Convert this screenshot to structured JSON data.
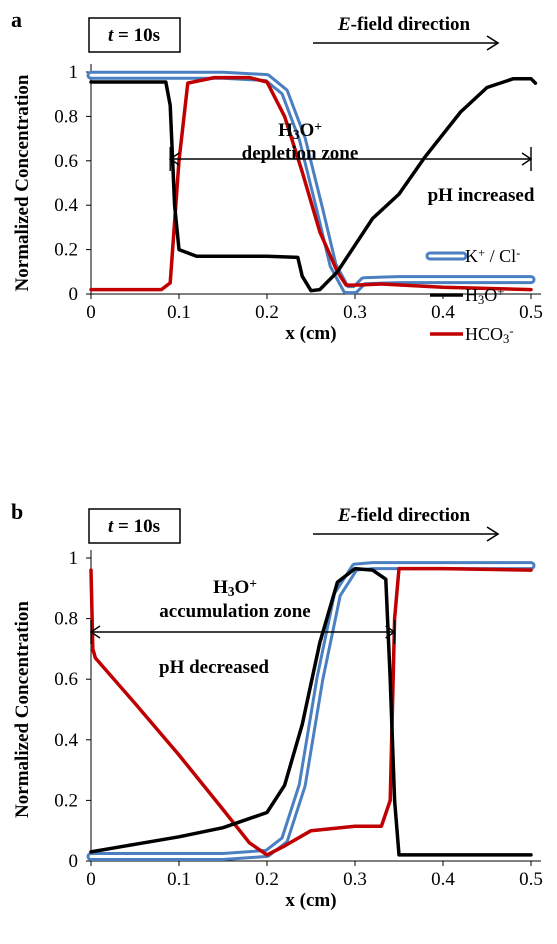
{
  "chart_data": [
    {
      "panel": "a",
      "type": "line",
      "time_label": {
        "italic": "t",
        "rest": " = 10s"
      },
      "efield_label": {
        "italic": "E",
        "rest": "-field direction"
      },
      "xlabel": "x (cm)",
      "ylabel": "Normalized Concentration",
      "xlim": [
        0,
        0.5
      ],
      "ylim": [
        0,
        1
      ],
      "xticks": [
        "0",
        "0.1",
        "0.2",
        "0.3",
        "0.4",
        "0.5"
      ],
      "yticks": [
        "0",
        "0.2",
        "0.4",
        "0.6",
        "0.8",
        "1"
      ],
      "zone_label": {
        "species": "H3O+",
        "text": "depletion zone"
      },
      "arrow_span": [
        0.09,
        0.5
      ],
      "ph_label": "pH increased",
      "legend": [
        {
          "name": "K+ / Cl-",
          "color": "#4a7fc1"
        },
        {
          "name": "H3O+",
          "color": "#000000"
        },
        {
          "name": "HCO3-",
          "color": "#c00000"
        }
      ],
      "series": [
        {
          "name": "K+ / Cl-",
          "color": "#4a7fc1",
          "x": [
            0,
            0.05,
            0.15,
            0.2,
            0.22,
            0.24,
            0.26,
            0.275,
            0.29,
            0.3,
            0.31,
            0.35,
            0.4,
            0.5
          ],
          "y": [
            0.985,
            0.985,
            0.985,
            0.975,
            0.91,
            0.7,
            0.38,
            0.13,
            0.02,
            0.02,
            0.06,
            0.065,
            0.065,
            0.065
          ]
        },
        {
          "name": "H3O+",
          "color": "#000000",
          "x": [
            0,
            0.05,
            0.085,
            0.09,
            0.095,
            0.1,
            0.12,
            0.2,
            0.235,
            0.24,
            0.25,
            0.26,
            0.28,
            0.3,
            0.32,
            0.35,
            0.38,
            0.42,
            0.45,
            0.48,
            0.5,
            0.505
          ],
          "y": [
            0.955,
            0.955,
            0.955,
            0.85,
            0.4,
            0.2,
            0.17,
            0.17,
            0.165,
            0.08,
            0.015,
            0.02,
            0.1,
            0.22,
            0.34,
            0.45,
            0.62,
            0.82,
            0.93,
            0.97,
            0.97,
            0.95
          ]
        },
        {
          "name": "HCO3-",
          "color": "#c00000",
          "x": [
            0,
            0.08,
            0.09,
            0.1,
            0.11,
            0.14,
            0.18,
            0.2,
            0.22,
            0.24,
            0.26,
            0.28,
            0.29,
            0.3,
            0.33,
            0.4,
            0.5
          ],
          "y": [
            0.02,
            0.02,
            0.05,
            0.6,
            0.95,
            0.975,
            0.975,
            0.955,
            0.8,
            0.55,
            0.28,
            0.1,
            0.04,
            0.04,
            0.045,
            0.03,
            0.02
          ]
        }
      ]
    },
    {
      "panel": "b",
      "type": "line",
      "time_label": {
        "italic": "t",
        "rest": " = 10s"
      },
      "efield_label": {
        "italic": "E",
        "rest": "-field direction"
      },
      "xlabel": "x (cm)",
      "ylabel": "Normalized Concentration",
      "xlim": [
        0,
        0.5
      ],
      "ylim": [
        0,
        1
      ],
      "xticks": [
        "0",
        "0.1",
        "0.2",
        "0.3",
        "0.4",
        "0.5"
      ],
      "yticks": [
        "0",
        "0.2",
        "0.4",
        "0.6",
        "0.8",
        "1"
      ],
      "zone_label": {
        "species": "H3O+",
        "text": "accumulation zone"
      },
      "arrow_span": [
        0,
        0.345
      ],
      "ph_label": "pH decreased",
      "series": [
        {
          "name": "K+ / Cl-",
          "color": "#4a7fc1",
          "x": [
            0,
            0.15,
            0.2,
            0.22,
            0.24,
            0.26,
            0.28,
            0.3,
            0.32,
            0.4,
            0.5
          ],
          "y": [
            0.015,
            0.015,
            0.025,
            0.07,
            0.25,
            0.6,
            0.88,
            0.97,
            0.975,
            0.975,
            0.975
          ]
        },
        {
          "name": "H3O+",
          "color": "#000000",
          "x": [
            0,
            0.05,
            0.1,
            0.15,
            0.2,
            0.22,
            0.24,
            0.26,
            0.28,
            0.3,
            0.32,
            0.335,
            0.34,
            0.345,
            0.35,
            0.4,
            0.5
          ],
          "y": [
            0.03,
            0.055,
            0.08,
            0.11,
            0.16,
            0.25,
            0.45,
            0.72,
            0.92,
            0.965,
            0.96,
            0.93,
            0.6,
            0.2,
            0.02,
            0.02,
            0.02
          ]
        },
        {
          "name": "HCO3-",
          "color": "#c00000",
          "x": [
            0,
            0.002,
            0.005,
            0.05,
            0.1,
            0.15,
            0.18,
            0.2,
            0.22,
            0.25,
            0.3,
            0.33,
            0.34,
            0.345,
            0.35,
            0.4,
            0.5
          ],
          "y": [
            0.96,
            0.7,
            0.67,
            0.52,
            0.35,
            0.17,
            0.06,
            0.02,
            0.05,
            0.1,
            0.115,
            0.115,
            0.2,
            0.8,
            0.965,
            0.965,
            0.96
          ]
        }
      ]
    }
  ]
}
